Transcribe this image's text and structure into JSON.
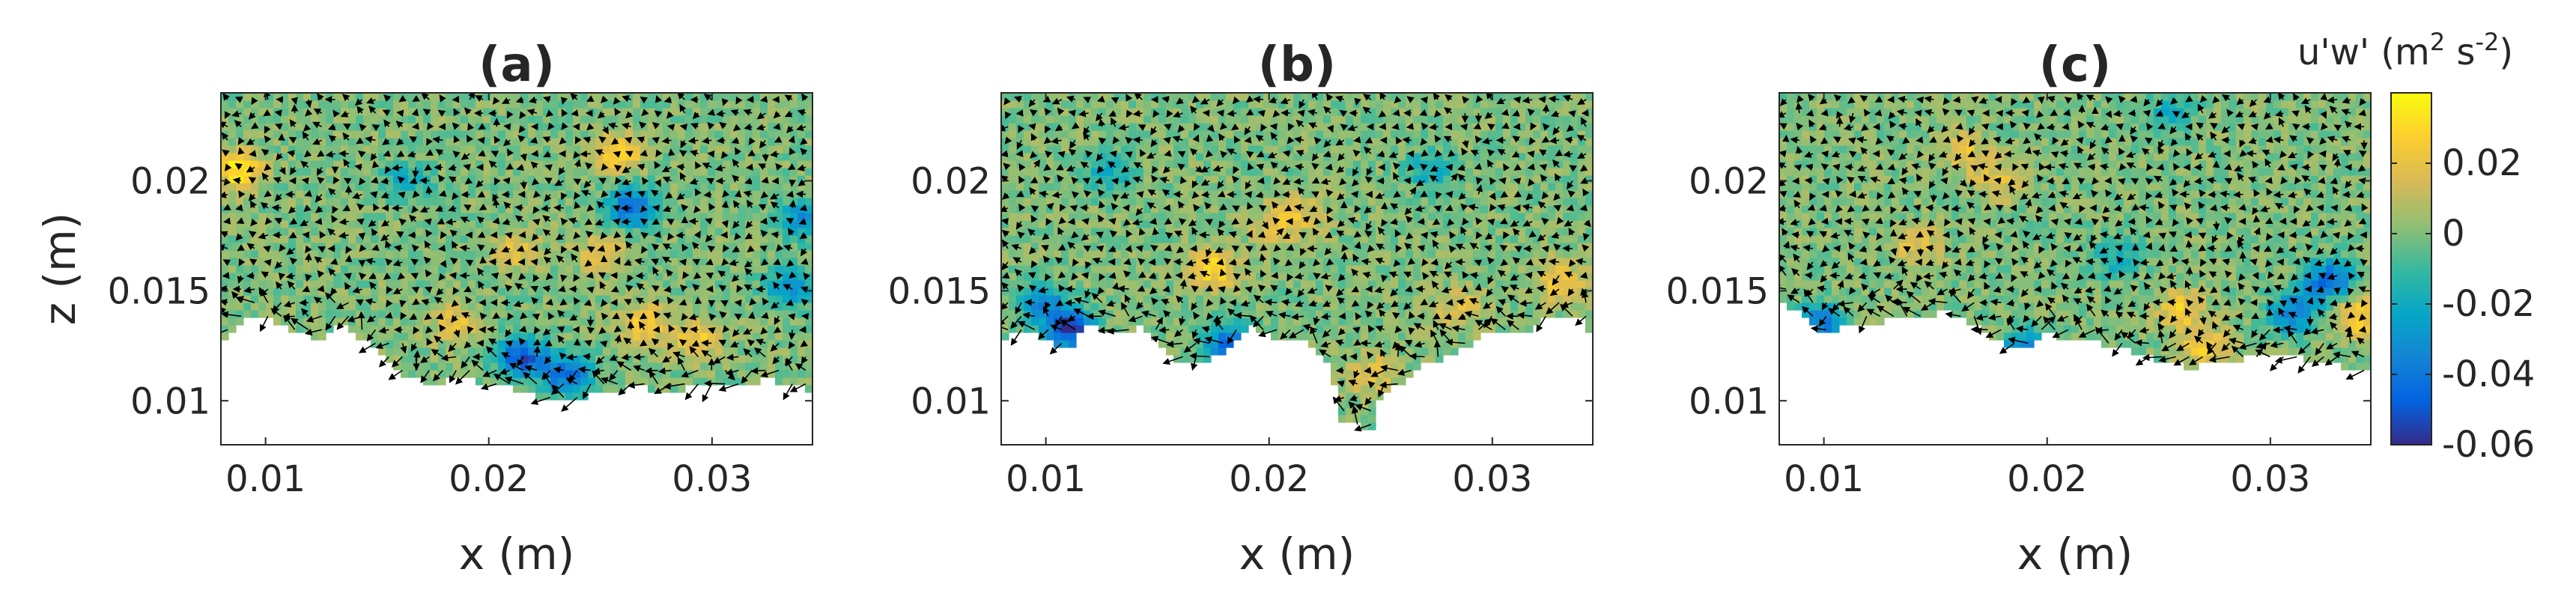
{
  "chart_data": [
    {
      "type": "heatmap",
      "title": "(a)",
      "xlabel": "x (m)",
      "ylabel": "z (m)",
      "xlim": [
        0.008,
        0.0345
      ],
      "ylim": [
        0.008,
        0.024
      ],
      "xticks": [
        0.01,
        0.02,
        0.03
      ],
      "yticks": [
        0.01,
        0.015,
        0.02
      ],
      "xtick_labels": [
        "0.01",
        "0.02",
        "0.03"
      ],
      "ytick_labels": [
        "0.01",
        "0.015",
        "0.02"
      ],
      "overlay": "velocity quiver arrows",
      "boundary": [
        [
          0.008,
          0.0128
        ],
        [
          0.0096,
          0.014
        ],
        [
          0.0111,
          0.0132
        ],
        [
          0.0125,
          0.0128
        ],
        [
          0.0135,
          0.0135
        ],
        [
          0.0148,
          0.0124
        ],
        [
          0.016,
          0.0113
        ],
        [
          0.0175,
          0.0108
        ],
        [
          0.019,
          0.011
        ],
        [
          0.0205,
          0.0107
        ],
        [
          0.022,
          0.0102
        ],
        [
          0.0235,
          0.01
        ],
        [
          0.025,
          0.0103
        ],
        [
          0.0265,
          0.0107
        ],
        [
          0.028,
          0.0103
        ],
        [
          0.0295,
          0.0108
        ],
        [
          0.031,
          0.0106
        ],
        [
          0.0325,
          0.011
        ],
        [
          0.0345,
          0.0105
        ]
      ],
      "hotspots": [
        {
          "x": 0.0258,
          "z": 0.0213,
          "value": 0.03
        },
        {
          "x": 0.0264,
          "z": 0.0188,
          "value": -0.045
        },
        {
          "x": 0.025,
          "z": 0.0168,
          "value": 0.02
        },
        {
          "x": 0.0215,
          "z": 0.012,
          "value": -0.05
        },
        {
          "x": 0.0235,
          "z": 0.0112,
          "value": -0.045
        },
        {
          "x": 0.027,
          "z": 0.0135,
          "value": 0.025
        },
        {
          "x": 0.0294,
          "z": 0.0128,
          "value": 0.025
        },
        {
          "x": 0.0185,
          "z": 0.0135,
          "value": 0.02
        },
        {
          "x": 0.0088,
          "z": 0.0205,
          "value": 0.035
        },
        {
          "x": 0.0335,
          "z": 0.0152,
          "value": -0.03
        },
        {
          "x": 0.034,
          "z": 0.0183,
          "value": -0.03
        },
        {
          "x": 0.0212,
          "z": 0.0168,
          "value": 0.018
        },
        {
          "x": 0.0163,
          "z": 0.02,
          "value": -0.02
        }
      ]
    },
    {
      "type": "heatmap",
      "title": "(b)",
      "xlabel": "x (m)",
      "ylabel": "",
      "xlim": [
        0.008,
        0.0345
      ],
      "ylim": [
        0.008,
        0.024
      ],
      "xticks": [
        0.01,
        0.02,
        0.03
      ],
      "yticks": [
        0.01,
        0.015,
        0.02
      ],
      "xtick_labels": [
        "0.01",
        "0.02",
        "0.03"
      ],
      "ytick_labels": [
        "0.01",
        "0.015",
        "0.02"
      ],
      "overlay": "velocity quiver arrows",
      "boundary": [
        [
          0.008,
          0.0128
        ],
        [
          0.009,
          0.0131
        ],
        [
          0.0102,
          0.0128
        ],
        [
          0.011,
          0.0122
        ],
        [
          0.0118,
          0.0135
        ],
        [
          0.013,
          0.0131
        ],
        [
          0.0143,
          0.0133
        ],
        [
          0.015,
          0.0126
        ],
        [
          0.016,
          0.0118
        ],
        [
          0.0172,
          0.0116
        ],
        [
          0.0182,
          0.0125
        ],
        [
          0.0192,
          0.0133
        ],
        [
          0.0205,
          0.0128
        ],
        [
          0.0218,
          0.0127
        ],
        [
          0.0228,
          0.0115
        ],
        [
          0.0232,
          0.009
        ],
        [
          0.0246,
          0.0088
        ],
        [
          0.025,
          0.0103
        ],
        [
          0.026,
          0.0108
        ],
        [
          0.0272,
          0.0118
        ],
        [
          0.0284,
          0.0121
        ],
        [
          0.0296,
          0.013
        ],
        [
          0.0308,
          0.013
        ],
        [
          0.0318,
          0.0133
        ],
        [
          0.0328,
          0.014
        ],
        [
          0.034,
          0.0137
        ],
        [
          0.0345,
          0.0128
        ]
      ],
      "hotspots": [
        {
          "x": 0.011,
          "z": 0.0133,
          "value": -0.06
        },
        {
          "x": 0.0098,
          "z": 0.0145,
          "value": -0.03
        },
        {
          "x": 0.0182,
          "z": 0.0126,
          "value": -0.045
        },
        {
          "x": 0.0175,
          "z": 0.016,
          "value": 0.03
        },
        {
          "x": 0.033,
          "z": 0.0155,
          "value": 0.025
        },
        {
          "x": 0.0285,
          "z": 0.0143,
          "value": 0.02
        },
        {
          "x": 0.0216,
          "z": 0.0185,
          "value": 0.015
        },
        {
          "x": 0.0272,
          "z": 0.0205,
          "value": -0.02
        },
        {
          "x": 0.0128,
          "z": 0.0205,
          "value": -0.02
        },
        {
          "x": 0.0246,
          "z": 0.0112,
          "value": 0.02
        },
        {
          "x": 0.0202,
          "z": 0.018,
          "value": 0.018
        }
      ]
    },
    {
      "type": "heatmap",
      "title": "(c)",
      "xlabel": "x (m)",
      "ylabel": "",
      "xlim": [
        0.008,
        0.0345
      ],
      "ylim": [
        0.008,
        0.024
      ],
      "xticks": [
        0.01,
        0.02,
        0.03
      ],
      "yticks": [
        0.01,
        0.015,
        0.02
      ],
      "xtick_labels": [
        "0.01",
        "0.02",
        "0.03"
      ],
      "ytick_labels": [
        "0.01",
        "0.015",
        "0.02"
      ],
      "overlay": "velocity quiver arrows",
      "boundary": [
        [
          0.008,
          0.0148
        ],
        [
          0.009,
          0.0138
        ],
        [
          0.01,
          0.0131
        ],
        [
          0.0112,
          0.0134
        ],
        [
          0.0125,
          0.0136
        ],
        [
          0.014,
          0.0138
        ],
        [
          0.0155,
          0.014
        ],
        [
          0.0168,
          0.0135
        ],
        [
          0.0178,
          0.0127
        ],
        [
          0.019,
          0.0124
        ],
        [
          0.02,
          0.013
        ],
        [
          0.0212,
          0.0128
        ],
        [
          0.0225,
          0.0126
        ],
        [
          0.0235,
          0.0124
        ],
        [
          0.0245,
          0.012
        ],
        [
          0.0255,
          0.0118
        ],
        [
          0.0265,
          0.0115
        ],
        [
          0.028,
          0.0118
        ],
        [
          0.0295,
          0.012
        ],
        [
          0.031,
          0.012
        ],
        [
          0.0325,
          0.0118
        ],
        [
          0.0335,
          0.0115
        ],
        [
          0.0345,
          0.0112
        ]
      ],
      "hotspots": [
        {
          "x": 0.0326,
          "z": 0.0155,
          "value": -0.045
        },
        {
          "x": 0.031,
          "z": 0.014,
          "value": -0.04
        },
        {
          "x": 0.027,
          "z": 0.0125,
          "value": 0.025
        },
        {
          "x": 0.026,
          "z": 0.0142,
          "value": 0.025
        },
        {
          "x": 0.034,
          "z": 0.0138,
          "value": 0.03
        },
        {
          "x": 0.0192,
          "z": 0.0123,
          "value": -0.045
        },
        {
          "x": 0.0098,
          "z": 0.0135,
          "value": -0.04
        },
        {
          "x": 0.0178,
          "z": 0.02,
          "value": 0.02
        },
        {
          "x": 0.0255,
          "z": 0.023,
          "value": -0.02
        },
        {
          "x": 0.0142,
          "z": 0.017,
          "value": 0.02
        },
        {
          "x": 0.0232,
          "z": 0.0165,
          "value": -0.02
        },
        {
          "x": 0.0163,
          "z": 0.0213,
          "value": 0.02
        }
      ]
    }
  ],
  "colorbar": {
    "label_base": "u'w' (m",
    "label_sup1": "2",
    "label_mid": " s",
    "label_sup2": "-2",
    "label_end": ")",
    "range": [
      -0.06,
      0.04
    ],
    "ticks": [
      0.02,
      0,
      -0.02,
      -0.04,
      -0.06
    ],
    "tick_labels": [
      "0.02",
      "0",
      "-0.02",
      "-0.04",
      "-0.06"
    ],
    "colormap": "parula",
    "colormap_stops": [
      "#352a87",
      "#0363e1",
      "#1485d4",
      "#06a7c6",
      "#38b99e",
      "#92bf73",
      "#d9ba56",
      "#fcce2e",
      "#f9fb0e"
    ]
  }
}
